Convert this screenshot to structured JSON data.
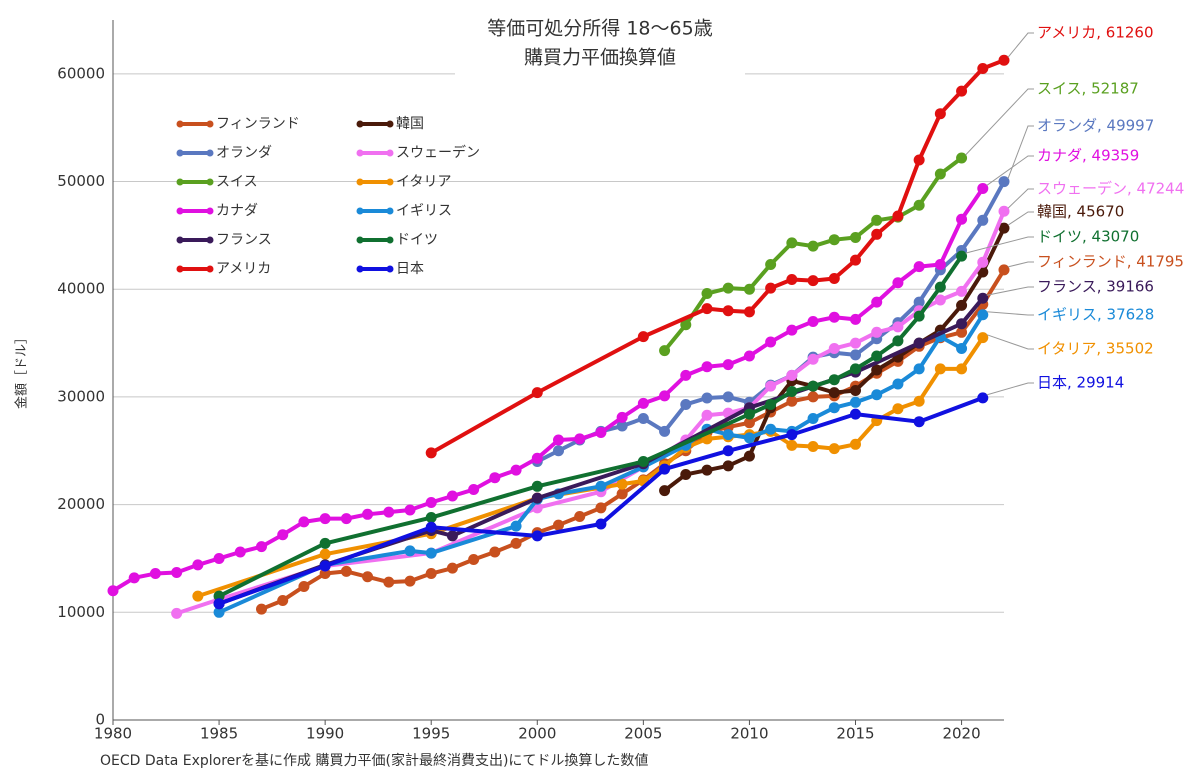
{
  "chart_data": {
    "type": "line",
    "title": "等価可処分所得 18〜65歳",
    "subtitle": "購買力平価換算値",
    "y_label": "金額［ドル］",
    "caption": "OECD Data Explorerを基に作成 購買力平価(家計最終消費支出)にてドル換算した数値",
    "xlim": [
      1980,
      2022
    ],
    "ylim": [
      0,
      65000
    ],
    "xticks": [
      1980,
      1985,
      1990,
      1995,
      2000,
      2005,
      2010,
      2015,
      2020
    ],
    "yticks": [
      0,
      10000,
      20000,
      30000,
      40000,
      50000,
      60000
    ],
    "grid": true,
    "legend": "upper left",
    "series": [
      {
        "name": "フィンランド",
        "color": "#c8501e",
        "label": "フィンランド, 41795",
        "x": [
          1987,
          1988,
          1989,
          1990,
          1991,
          1992,
          1993,
          1994,
          1995,
          1996,
          1997,
          1998,
          1999,
          2000,
          2001,
          2002,
          2003,
          2004,
          2005,
          2006,
          2007,
          2008,
          2009,
          2010,
          2011,
          2012,
          2013,
          2014,
          2015,
          2016,
          2017,
          2018,
          2019,
          2020,
          2021,
          2022
        ],
        "values": [
          10300,
          11100,
          12400,
          13600,
          13800,
          13300,
          12800,
          12900,
          13600,
          14100,
          14900,
          15600,
          16400,
          17400,
          18100,
          18900,
          19700,
          21000,
          22300,
          23800,
          25000,
          26700,
          27200,
          27600,
          28600,
          29600,
          30000,
          30100,
          31000,
          32200,
          33300,
          34700,
          35500,
          36000,
          38600,
          41795
        ]
      },
      {
        "name": "韓国",
        "color": "#4a1a0a",
        "label": "韓国, 45670",
        "x": [
          2006,
          2007,
          2008,
          2009,
          2010,
          2011,
          2012,
          2013,
          2014,
          2015,
          2016,
          2017,
          2018,
          2019,
          2020,
          2021,
          2022
        ],
        "values": [
          21300,
          22800,
          23200,
          23600,
          24500,
          29000,
          31500,
          31000,
          30400,
          30600,
          32500,
          33700,
          35000,
          36200,
          38500,
          41600,
          45670
        ]
      },
      {
        "name": "オランダ",
        "color": "#5a78c0",
        "label": "オランダ, 49997",
        "x": [
          2000,
          2001,
          2002,
          2003,
          2004,
          2005,
          2006,
          2007,
          2008,
          2009,
          2010,
          2011,
          2012,
          2013,
          2014,
          2015,
          2016,
          2017,
          2018,
          2019,
          2020,
          2021,
          2022
        ],
        "values": [
          24000,
          25000,
          26000,
          26800,
          27300,
          28000,
          26800,
          29300,
          29900,
          30000,
          29500,
          31100,
          32000,
          33700,
          34100,
          33900,
          35400,
          36900,
          38800,
          41800,
          43600,
          46400,
          49997
        ]
      },
      {
        "name": "スウェーデン",
        "color": "#f070f0",
        "label": "スウェーデン, 47244",
        "x": [
          1983,
          1985,
          1990,
          1995,
          2000,
          2003,
          2005,
          2007,
          2008,
          2009,
          2010,
          2011,
          2012,
          2013,
          2014,
          2015,
          2016,
          2017,
          2018,
          2019,
          2020,
          2021,
          2022
        ],
        "values": [
          9900,
          11200,
          14300,
          15500,
          19700,
          21200,
          23500,
          26000,
          28300,
          28500,
          29000,
          31000,
          32000,
          33500,
          34500,
          35000,
          36000,
          36500,
          38000,
          39000,
          39800,
          42500,
          47244
        ]
      },
      {
        "name": "スイス",
        "color": "#5aa020",
        "label": "スイス, 52187",
        "x": [
          2006,
          2007,
          2008,
          2009,
          2010,
          2011,
          2012,
          2013,
          2014,
          2015,
          2016,
          2017,
          2018,
          2019,
          2020
        ],
        "values": [
          34300,
          36700,
          39600,
          40100,
          40000,
          42300,
          44300,
          44000,
          44600,
          44800,
          46400,
          46700,
          47800,
          50700,
          52187
        ]
      },
      {
        "name": "イタリア",
        "color": "#f09000",
        "label": "イタリア, 35502",
        "x": [
          1984,
          1990,
          1995,
          2000,
          2004,
          2005,
          2006,
          2007,
          2008,
          2009,
          2010,
          2011,
          2012,
          2013,
          2014,
          2015,
          2016,
          2017,
          2018,
          2019,
          2020,
          2021
        ],
        "values": [
          11500,
          15400,
          17300,
          20600,
          21900,
          22200,
          23600,
          25300,
          26100,
          26300,
          26500,
          26800,
          25500,
          25400,
          25200,
          25600,
          27800,
          28900,
          29600,
          32600,
          32600,
          35502
        ]
      },
      {
        "name": "カナダ",
        "color": "#e010e0",
        "label": "カナダ, 49359",
        "x": [
          1980,
          1981,
          1982,
          1983,
          1984,
          1985,
          1986,
          1987,
          1988,
          1989,
          1990,
          1991,
          1992,
          1993,
          1994,
          1995,
          1996,
          1997,
          1998,
          1999,
          2000,
          2001,
          2002,
          2003,
          2004,
          2005,
          2006,
          2007,
          2008,
          2009,
          2010,
          2011,
          2012,
          2013,
          2014,
          2015,
          2016,
          2017,
          2018,
          2019,
          2020,
          2021
        ],
        "values": [
          12000,
          13200,
          13600,
          13700,
          14400,
          15000,
          15600,
          16100,
          17200,
          18400,
          18700,
          18700,
          19100,
          19300,
          19500,
          20200,
          20800,
          21400,
          22500,
          23200,
          24300,
          26000,
          26100,
          26700,
          28100,
          29400,
          30100,
          32000,
          32800,
          33000,
          33800,
          35100,
          36200,
          37000,
          37400,
          37200,
          38800,
          40600,
          42100,
          42300,
          46500,
          49359
        ]
      },
      {
        "name": "イギリス",
        "color": "#1a8ad8",
        "label": "イギリス, 37628",
        "x": [
          1985,
          1990,
          1994,
          1995,
          1999,
          2000,
          2001,
          2003,
          2005,
          2007,
          2008,
          2009,
          2010,
          2011,
          2012,
          2013,
          2014,
          2015,
          2016,
          2017,
          2018,
          2019,
          2020,
          2021
        ],
        "values": [
          10000,
          14400,
          15700,
          15500,
          18000,
          20500,
          21000,
          21700,
          23500,
          25500,
          27000,
          26500,
          26200,
          27000,
          26800,
          28000,
          29000,
          29500,
          30200,
          31200,
          32600,
          35600,
          34500,
          37628
        ]
      },
      {
        "name": "フランス",
        "color": "#3a1a5a",
        "label": "フランス, 39166",
        "x": [
          1985,
          1990,
          1995,
          1996,
          2000,
          2005,
          2010,
          2015,
          2018,
          2020,
          2021
        ],
        "values": [
          10800,
          14400,
          17600,
          17100,
          20600,
          23800,
          29000,
          32300,
          35000,
          36800,
          39166
        ]
      },
      {
        "name": "ドイツ",
        "color": "#107030",
        "label": "ドイツ, 43070",
        "x": [
          1985,
          1990,
          1995,
          2000,
          2005,
          2010,
          2011,
          2012,
          2013,
          2014,
          2015,
          2016,
          2017,
          2018,
          2019,
          2020
        ],
        "values": [
          11500,
          16400,
          18800,
          21700,
          24000,
          28400,
          29300,
          30500,
          31000,
          31600,
          32600,
          33800,
          35200,
          37500,
          40200,
          43070
        ]
      },
      {
        "name": "アメリカ",
        "color": "#e01010",
        "label": "アメリカ, 61260",
        "x": [
          1995,
          2000,
          2005,
          2008,
          2009,
          2010,
          2011,
          2012,
          2013,
          2014,
          2015,
          2016,
          2017,
          2018,
          2019,
          2020,
          2021,
          2022
        ],
        "values": [
          24800,
          30400,
          35600,
          38200,
          38000,
          37900,
          40100,
          40900,
          40800,
          41000,
          42700,
          45100,
          46800,
          52000,
          56300,
          58400,
          60500,
          61260
        ]
      },
      {
        "name": "日本",
        "color": "#1010e0",
        "label": "日本, 29914",
        "x": [
          1985,
          1990,
          1995,
          2000,
          2003,
          2006,
          2009,
          2012,
          2015,
          2018,
          2021
        ],
        "values": [
          10800,
          14300,
          17900,
          17100,
          18200,
          23300,
          25000,
          26500,
          28400,
          27700,
          29914
        ]
      }
    ]
  }
}
